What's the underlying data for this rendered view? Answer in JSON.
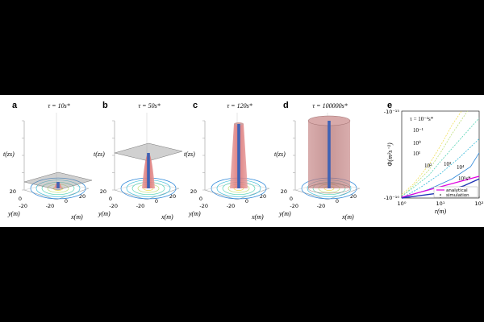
{
  "panels3d": [
    {
      "label": "a",
      "title": "τ = 10s*",
      "axes": {
        "t": "t(zs)",
        "y": "y(m)",
        "x": "x(m)"
      },
      "ticks": {
        "y": [
          "20",
          "0",
          "-20"
        ],
        "x": [
          "-20",
          "0",
          "20"
        ]
      },
      "column_height": 0.1,
      "plane_height": 0.1
    },
    {
      "label": "b",
      "title": "τ = 50s*",
      "axes": {
        "t": "t(zs)",
        "y": "y(m)",
        "x": "x(m)"
      },
      "ticks": {
        "y": [
          "20",
          "0",
          "-20"
        ],
        "x": [
          "-20",
          "0",
          "20"
        ]
      },
      "column_height": 0.55,
      "plane_height": 0.55
    },
    {
      "label": "c",
      "title": "τ = 120s*",
      "axes": {
        "t": "t(zs)",
        "y": "y(m)",
        "x": "x(m)"
      },
      "ticks": {
        "y": [
          "20",
          "0",
          "-20"
        ],
        "x": [
          "-20",
          "0",
          "20"
        ]
      },
      "column_height": 1.0,
      "plane_height": null
    },
    {
      "label": "d",
      "title": "τ = 100000s*",
      "axes": {
        "t": "t(zs)",
        "y": "y(m)",
        "x": "x(m)"
      },
      "ticks": {
        "y": [
          "20",
          "0",
          "-20"
        ],
        "x": [
          "-20",
          "0",
          "20"
        ]
      },
      "column_height": 1.0,
      "plane_height": null
    }
  ],
  "chart_data": [
    {
      "type": "line",
      "label": "e",
      "xlabel": "r(m)",
      "ylabel": "Φ(m²s⁻²)",
      "xscale": "log",
      "yscale": "log",
      "x_ticks": [
        "10⁰",
        "10¹",
        "10²"
      ],
      "y_ticks": [
        "-10⁻¹⁵",
        "-10⁻¹⁰"
      ],
      "xlim": [
        1,
        100
      ],
      "ylim_exponent": [
        -15,
        -10
      ],
      "contour_labels": [
        "τ = 10⁻²s*",
        "10⁻¹",
        "10⁰",
        "10¹",
        "10²",
        "10³",
        "10⁴",
        "10⁵s*"
      ],
      "series": [
        {
          "name": "10⁻²",
          "color": "#f1e05a",
          "points": [
            [
              1,
              -10.2
            ],
            [
              2,
              -10.8
            ],
            [
              5,
              -11.9
            ],
            [
              10,
              -13.0
            ],
            [
              20,
              -14.2
            ],
            [
              35,
              -15.0
            ]
          ]
        },
        {
          "name": "10⁻¹",
          "color": "#bfe07a",
          "points": [
            [
              1,
              -10.1
            ],
            [
              2,
              -10.7
            ],
            [
              5,
              -11.6
            ],
            [
              10,
              -12.6
            ],
            [
              20,
              -13.7
            ],
            [
              50,
              -15.0
            ]
          ]
        },
        {
          "name": "10⁰",
          "color": "#55d4b5",
          "points": [
            [
              1,
              -10.1
            ],
            [
              2,
              -10.6
            ],
            [
              5,
              -11.3
            ],
            [
              10,
              -12.1
            ],
            [
              30,
              -13.3
            ],
            [
              100,
              -14.6
            ]
          ]
        },
        {
          "name": "10¹",
          "color": "#35b9d9",
          "points": [
            [
              1,
              -10.0
            ],
            [
              3,
              -10.6
            ],
            [
              10,
              -11.4
            ],
            [
              30,
              -12.3
            ],
            [
              100,
              -13.4
            ]
          ]
        },
        {
          "name": "10²",
          "color": "#2a86d9",
          "points": [
            [
              1,
              -10.0
            ],
            [
              5,
              -10.5
            ],
            [
              20,
              -11.1
            ],
            [
              60,
              -11.8
            ],
            [
              100,
              -12.6
            ]
          ]
        },
        {
          "name": "10⁵",
          "color": "#1f33b5",
          "points": [
            [
              1,
              -10.0
            ],
            [
              10,
              -10.3
            ],
            [
              40,
              -10.7
            ],
            [
              100,
              -11.1
            ]
          ]
        }
      ],
      "legend": [
        {
          "name": "analytical",
          "color": "#e000e0"
        },
        {
          "name": "simulation",
          "color": "#000000"
        }
      ]
    }
  ]
}
